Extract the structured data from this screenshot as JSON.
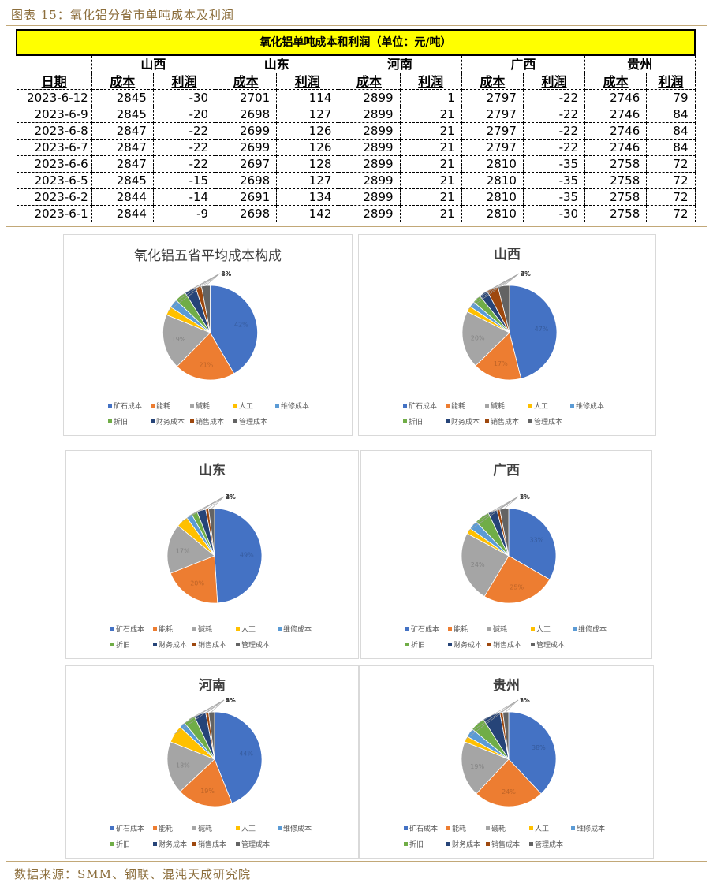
{
  "caption": "图表 15：氧化铝分省市单吨成本及利润",
  "source": "数据来源：SMM、钢联、混沌天成研究院",
  "table": {
    "title": "氧化铝单吨成本和利润（单位：元/吨）",
    "provinces": [
      "山西",
      "山东",
      "河南",
      "广西",
      "贵州"
    ],
    "headers": [
      "日期",
      "成本",
      "利润",
      "成本",
      "利润",
      "成本",
      "利润",
      "成本",
      "利润",
      "成本",
      "利润"
    ],
    "rows": [
      [
        "2023-6-12",
        "2845",
        "-30",
        "2701",
        "114",
        "2899",
        "1",
        "2797",
        "-22",
        "2746",
        "79"
      ],
      [
        "2023-6-9",
        "2845",
        "-20",
        "2698",
        "127",
        "2899",
        "21",
        "2797",
        "-22",
        "2746",
        "84"
      ],
      [
        "2023-6-8",
        "2847",
        "-22",
        "2699",
        "126",
        "2899",
        "21",
        "2797",
        "-22",
        "2746",
        "84"
      ],
      [
        "2023-6-7",
        "2847",
        "-22",
        "2699",
        "126",
        "2899",
        "21",
        "2797",
        "-22",
        "2746",
        "84"
      ],
      [
        "2023-6-6",
        "2847",
        "-22",
        "2697",
        "128",
        "2899",
        "21",
        "2810",
        "-35",
        "2758",
        "72"
      ],
      [
        "2023-6-5",
        "2845",
        "-15",
        "2698",
        "127",
        "2899",
        "21",
        "2810",
        "-35",
        "2758",
        "72"
      ],
      [
        "2023-6-2",
        "2844",
        "-14",
        "2691",
        "134",
        "2899",
        "21",
        "2810",
        "-35",
        "2758",
        "72"
      ],
      [
        "2023-6-1",
        "2844",
        "-9",
        "2698",
        "142",
        "2899",
        "21",
        "2810",
        "-30",
        "2758",
        "72"
      ]
    ]
  },
  "legend": {
    "labels": [
      "矿石成本",
      "能耗",
      "碱耗",
      "人工",
      "维修成本",
      "折旧",
      "财务成本",
      "销售成本",
      "管理成本"
    ],
    "colors": [
      "#4472c4",
      "#ed7d31",
      "#a5a5a5",
      "#ffc000",
      "#5b9bd5",
      "#70ad47",
      "#264478",
      "#9e480e",
      "#636363"
    ]
  },
  "chart_data": [
    {
      "type": "pie",
      "title": "氧化铝五省平均成本构成",
      "categories": [
        "矿石成本",
        "能耗",
        "碱耗",
        "人工",
        "维修成本",
        "折旧",
        "财务成本",
        "销售成本",
        "管理成本"
      ],
      "values": [
        42,
        21,
        19,
        3,
        3,
        4,
        4,
        2,
        3
      ],
      "labels": [
        "42%",
        "21%",
        "19%",
        "3%",
        "3%",
        "4%",
        "4%",
        "2%",
        "3%"
      ]
    },
    {
      "type": "pie",
      "title": "山西",
      "categories": [
        "矿石成本",
        "能耗",
        "碱耗",
        "人工",
        "维修成本",
        "折旧",
        "财务成本",
        "销售成本",
        "管理成本"
      ],
      "values": [
        47,
        17,
        20,
        2,
        2,
        3,
        3,
        4,
        4
      ],
      "labels": [
        "47%",
        "17%",
        "20%",
        "2%",
        "2%",
        "3%",
        "3%",
        "4%",
        "4%"
      ]
    },
    {
      "type": "pie",
      "title": "山东",
      "categories": [
        "矿石成本",
        "能耗",
        "碱耗",
        "人工",
        "维修成本",
        "折旧",
        "财务成本",
        "销售成本",
        "管理成本"
      ],
      "values": [
        49,
        20,
        17,
        4,
        2,
        2,
        3,
        1,
        2
      ],
      "labels": [
        "49%",
        "20%",
        "17%",
        "4%",
        "2%",
        "2%",
        "3%",
        "1%",
        "2%"
      ]
    },
    {
      "type": "pie",
      "title": "广西",
      "categories": [
        "矿石成本",
        "能耗",
        "碱耗",
        "人工",
        "维修成本",
        "折旧",
        "财务成本",
        "销售成本",
        "管理成本"
      ],
      "values": [
        33,
        25,
        24,
        2,
        3,
        5,
        3,
        1,
        3
      ],
      "labels": [
        "33%",
        "25%",
        "24%",
        "2%",
        "3%",
        "5%",
        "3%",
        "1%",
        "3%"
      ]
    },
    {
      "type": "pie",
      "title": "河南",
      "categories": [
        "矿石成本",
        "能耗",
        "碱耗",
        "人工",
        "维修成本",
        "折旧",
        "财务成本",
        "销售成本",
        "管理成本"
      ],
      "values": [
        44,
        19,
        18,
        6,
        2,
        4,
        4,
        1,
        2
      ],
      "labels": [
        "44%",
        "19%",
        "18%",
        "6%",
        "2%",
        "4%",
        "4%",
        "1%",
        "2%"
      ]
    },
    {
      "type": "pie",
      "title": "贵州",
      "categories": [
        "矿石成本",
        "能耗",
        "碱耗",
        "人工",
        "维修成本",
        "折旧",
        "财务成本",
        "销售成本",
        "管理成本"
      ],
      "values": [
        38,
        24,
        19,
        2,
        3,
        5,
        6,
        1,
        2
      ],
      "labels": [
        "38%",
        "24%",
        "19%",
        "2%",
        "3%",
        "5%",
        "",
        "1%",
        "2%"
      ]
    }
  ]
}
